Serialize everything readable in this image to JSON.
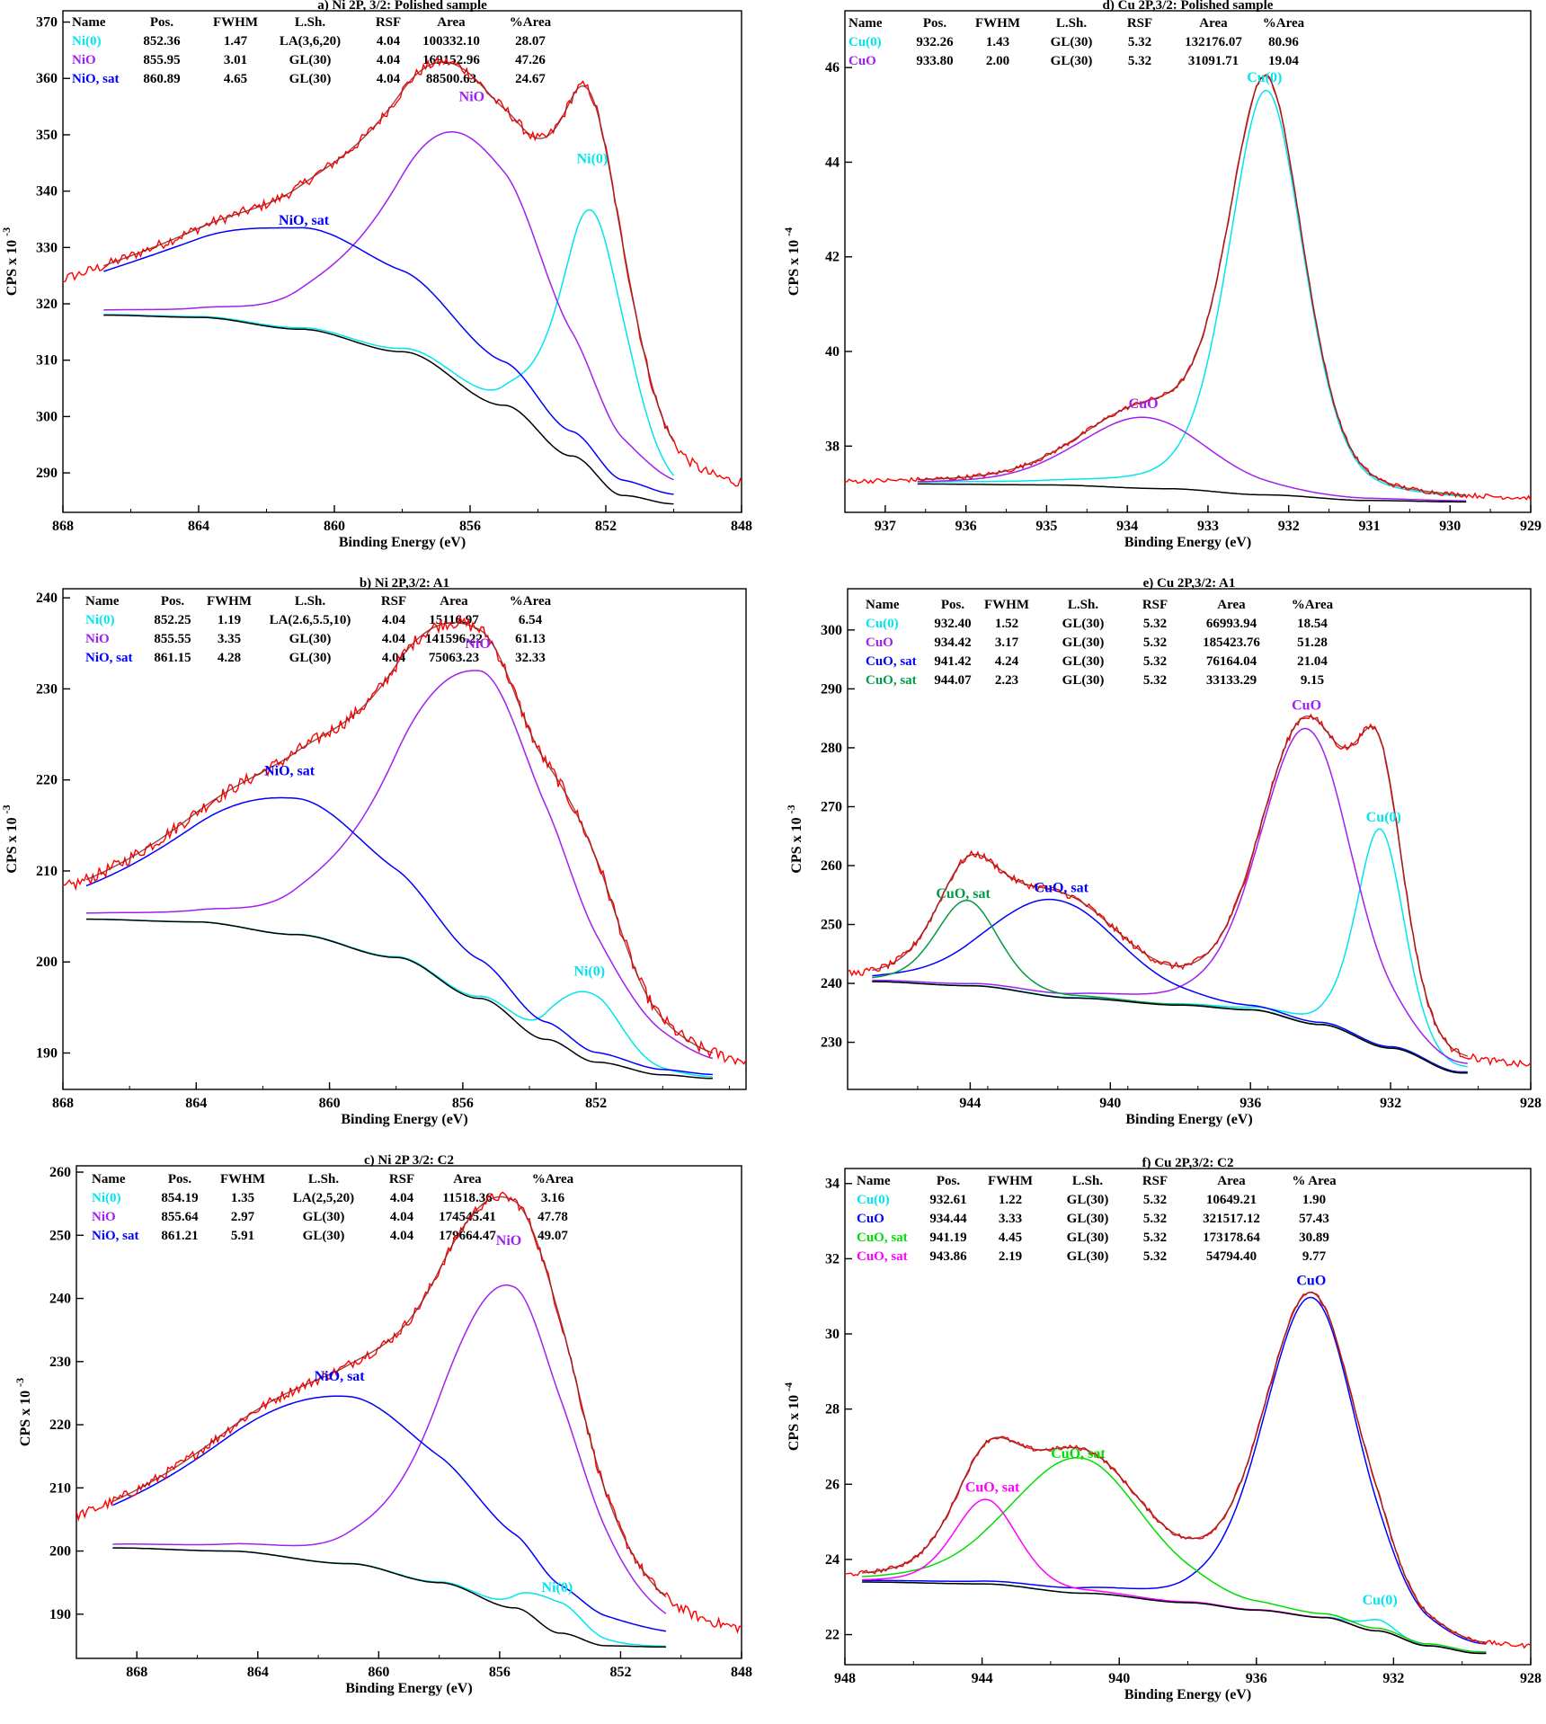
{
  "chart_data": [
    {
      "type": "line",
      "title": "a) Ni 2P, 3/2: Polished sample",
      "xlabel": "Binding Energy (eV)",
      "ylabel": "CPS x 10",
      "ylabel_exp": "-3",
      "xlim": [
        868,
        848
      ],
      "ylim": [
        283,
        372
      ],
      "xticks": [
        868,
        864,
        860,
        856,
        852,
        848
      ],
      "yticks": [
        290,
        300,
        310,
        320,
        330,
        340,
        350,
        360,
        370
      ],
      "table_header": [
        "Name",
        "Pos.",
        "FWHM",
        "L.Sh.",
        "RSF",
        "Area",
        "%Area"
      ],
      "table_rows": [
        [
          "Ni(0)",
          "852.36",
          "1.47",
          "LA(3,6,20)",
          "4.04",
          "100332.10",
          "28.07"
        ],
        [
          "NiO",
          "855.95",
          "3.01",
          "GL(30)",
          "4.04",
          "169152.96",
          "47.26"
        ],
        [
          "NiO, sat",
          "860.89",
          "4.65",
          "GL(30)",
          "4.04",
          "88500.63",
          "24.67"
        ]
      ],
      "row_colors": [
        "#00E5EE",
        "#A020F0",
        "#0000FF"
      ],
      "bg_x": [
        866.8,
        864,
        861,
        858,
        855,
        853,
        851.5,
        850
      ],
      "bg_y": [
        318,
        317.6,
        315.5,
        311.5,
        302,
        293,
        286,
        284.5
      ],
      "x_range": [
        866.8,
        850
      ],
      "components": [
        {
          "name": "Ni(0)",
          "color": "#00E5EE",
          "center": 852.36,
          "height": 46,
          "width": 1.2,
          "label_x": 852.4,
          "label_y": 345
        },
        {
          "name": "NiO",
          "color": "#A020F0",
          "center": 855.95,
          "height": 45,
          "width": 2.9,
          "label_x": 855.95,
          "label_y": 356
        },
        {
          "name": "NiO, sat",
          "color": "#0000FF",
          "center": 860.9,
          "height": 18,
          "width": 5.3,
          "label_x": 860.9,
          "label_y": 334
        }
      ],
      "noise": 0.9,
      "raw_x": [
        869,
        847.5
      ]
    },
    {
      "type": "line",
      "title": "b) Ni 2P,3/2: A1",
      "xlabel": "Binding Energy (eV)",
      "ylabel": "CPS x 10",
      "ylabel_exp": "-3",
      "xlim": [
        868,
        847.5
      ],
      "ylim": [
        186,
        241
      ],
      "xticks": [
        868,
        864,
        860,
        856,
        852
      ],
      "yticks": [
        190,
        200,
        210,
        220,
        230,
        240
      ],
      "table_header": [
        "Name",
        "Pos.",
        "FWHM",
        "L.Sh.",
        "RSF",
        "Area",
        "%Area"
      ],
      "table_rows": [
        [
          "Ni(0)",
          "852.25",
          "1.19",
          "LA(2.6,5.5,10)",
          "4.04",
          "15116.97",
          "6.54"
        ],
        [
          "NiO",
          "855.55",
          "3.35",
          "GL(30)",
          "4.04",
          "141596.22",
          "61.13"
        ],
        [
          "NiO, sat",
          "861.15",
          "4.28",
          "GL(30)",
          "4.04",
          "75063.23",
          "32.33"
        ]
      ],
      "row_colors": [
        "#00E5EE",
        "#A020F0",
        "#0000FF"
      ],
      "bg_x": [
        867.3,
        864,
        861,
        858,
        855.5,
        853.5,
        852,
        850,
        848.5
      ],
      "bg_y": [
        204.7,
        204.4,
        203,
        200.5,
        196,
        191.5,
        189,
        187.6,
        187.2
      ],
      "x_range": [
        867.3,
        848.5
      ],
      "components": [
        {
          "name": "Ni(0)",
          "color": "#00E5EE",
          "center": 852.2,
          "height": 7.5,
          "width": 1.1,
          "label_x": 852.2,
          "label_y": 198.5
        },
        {
          "name": "NiO",
          "color": "#A020F0",
          "center": 855.55,
          "height": 36,
          "width": 3.0,
          "label_x": 855.55,
          "label_y": 234.5
        },
        {
          "name": "NiO, sat",
          "color": "#0000FF",
          "center": 861.2,
          "height": 15,
          "width": 4.1,
          "label_x": 861.2,
          "label_y": 220.5
        }
      ],
      "noise": 0.7,
      "raw_x": [
        868,
        847.5
      ]
    },
    {
      "type": "line",
      "title": "c) Ni 2P 3/2: C2",
      "xlabel": "Binding Energy (eV)",
      "ylabel": "CPS x 10",
      "ylabel_exp": "-3",
      "xlim": [
        870,
        848
      ],
      "ylim": [
        183,
        261
      ],
      "xticks": [
        868,
        864,
        860,
        856,
        852,
        848
      ],
      "yticks": [
        190,
        200,
        210,
        220,
        230,
        240,
        250,
        260
      ],
      "table_header": [
        "Name",
        "Pos.",
        "FWHM",
        "L.Sh.",
        "RSF",
        "Area",
        "%Area"
      ],
      "table_rows": [
        [
          "Ni(0)",
          "854.19",
          "1.35",
          "LA(2,5,20)",
          "4.04",
          "11518.36",
          "3.16"
        ],
        [
          "NiO",
          "855.64",
          "2.97",
          "GL(30)",
          "4.04",
          "174545.41",
          "47.78"
        ],
        [
          "NiO, sat",
          "861.21",
          "5.91",
          "GL(30)",
          "4.04",
          "179664.47",
          "49.07"
        ]
      ],
      "row_colors": [
        "#00E5EE",
        "#A020F0",
        "#0000FF"
      ],
      "bg_x": [
        868.8,
        865,
        861,
        858,
        855.5,
        854,
        852.5,
        850.5
      ],
      "bg_y": [
        200.5,
        200,
        198,
        195,
        191,
        187,
        185,
        184.8
      ],
      "x_range": [
        868.8,
        850.5
      ],
      "components": [
        {
          "name": "Ni(0)",
          "color": "#00E5EE",
          "center": 854.2,
          "height": 5,
          "width": 1.1,
          "label_x": 854.1,
          "label_y": 193.5
        },
        {
          "name": "NiO",
          "color": "#A020F0",
          "center": 855.7,
          "height": 51,
          "width": 2.6,
          "label_x": 855.7,
          "label_y": 248.5
        },
        {
          "name": "NiO, sat",
          "color": "#0000FF",
          "center": 861.2,
          "height": 26.5,
          "width": 5.2,
          "label_x": 861.3,
          "label_y": 227
        }
      ],
      "noise": 0.8,
      "raw_x": [
        870,
        848
      ]
    },
    {
      "type": "line",
      "title": "d) Cu 2P,3/2: Polished sample",
      "xlabel": "Binding Energy (eV)",
      "ylabel": "CPS x 10",
      "ylabel_exp": "-4",
      "xlim": [
        937.5,
        929
      ],
      "ylim": [
        36.6,
        47.2
      ],
      "xticks": [
        937,
        936,
        935,
        934,
        933,
        932,
        931,
        930,
        929
      ],
      "yticks": [
        38,
        40,
        42,
        44,
        46
      ],
      "table_header": [
        "Name",
        "Pos.",
        "FWHM",
        "L.Sh.",
        "RSF",
        "Area",
        "%Area"
      ],
      "table_rows": [
        [
          "Cu(0)",
          "932.26",
          "1.43",
          "GL(30)",
          "5.32",
          "132176.07",
          "80.96"
        ],
        [
          "CuO",
          "933.80",
          "2.00",
          "GL(30)",
          "5.32",
          "31091.71",
          "19.04"
        ]
      ],
      "row_colors": [
        "#00E5EE",
        "#A020F0"
      ],
      "bg_x": [
        936.6,
        935,
        933.5,
        932.3,
        931,
        929.8
      ],
      "bg_y": [
        37.2,
        37.18,
        37.1,
        36.97,
        36.85,
        36.82
      ],
      "x_range": [
        936.6,
        929.8
      ],
      "components": [
        {
          "name": "Cu(0)",
          "color": "#00E5EE",
          "center": 932.28,
          "height": 8.55,
          "width": 0.55,
          "label_x": 932.3,
          "label_y": 45.7
        },
        {
          "name": "CuO",
          "color": "#A020F0",
          "center": 933.8,
          "height": 1.5,
          "width": 0.95,
          "label_x": 933.8,
          "label_y": 38.8
        }
      ],
      "noise": 0.05,
      "raw_x": [
        937.5,
        929
      ]
    },
    {
      "type": "line",
      "title": "e) Cu 2P,3/2: A1",
      "xlabel": "Binding Energy (eV)",
      "ylabel": "CPS x 10",
      "ylabel_exp": "-3",
      "xlim": [
        947.5,
        928
      ],
      "ylim": [
        222,
        307
      ],
      "xticks": [
        944,
        940,
        936,
        932,
        928
      ],
      "yticks": [
        230,
        240,
        250,
        260,
        270,
        280,
        290,
        300
      ],
      "table_header": [
        "Name",
        "Pos.",
        "FWHM",
        "L.Sh.",
        "RSF",
        "Area",
        "%Area"
      ],
      "table_rows": [
        [
          "Cu(0)",
          "932.40",
          "1.52",
          "GL(30)",
          "5.32",
          "66993.94",
          "18.54"
        ],
        [
          "CuO",
          "934.42",
          "3.17",
          "GL(30)",
          "5.32",
          "185423.76",
          "51.28"
        ],
        [
          "CuO, sat",
          "941.42",
          "4.24",
          "GL(30)",
          "5.32",
          "76164.04",
          "21.04"
        ],
        [
          "CuO, sat",
          "944.07",
          "2.23",
          "GL(30)",
          "5.32",
          "33133.29",
          "9.15"
        ]
      ],
      "row_colors": [
        "#00E5EE",
        "#A020F0",
        "#0000FF",
        "#009A44"
      ],
      "bg_x": [
        946.8,
        944,
        941,
        938,
        936,
        934,
        932,
        930
      ],
      "bg_y": [
        240.3,
        239.6,
        237.5,
        236.3,
        235.5,
        233,
        229,
        224.8
      ],
      "x_range": [
        946.8,
        929.8
      ],
      "components": [
        {
          "name": "Cu(0)",
          "color": "#00E5EE",
          "center": 932.3,
          "height": 37,
          "width": 0.8,
          "label_x": 932.2,
          "label_y": 267.5
        },
        {
          "name": "CuO",
          "color": "#A020F0",
          "center": 934.4,
          "height": 50,
          "width": 1.55,
          "label_x": 934.4,
          "label_y": 286.5
        },
        {
          "name": "CuO, sat",
          "color": "#0000FF",
          "center": 941.6,
          "height": 16.5,
          "width": 2.2,
          "label_x": 941.4,
          "label_y": 255.5
        },
        {
          "name": "CuO, sat",
          "color": "#009A44",
          "center": 944.1,
          "height": 14.5,
          "width": 1.05,
          "label_x": 944.2,
          "label_y": 254.5
        }
      ],
      "noise": 0.6,
      "raw_x": [
        947.5,
        928
      ]
    },
    {
      "type": "line",
      "title": "f) Cu 2P,3/2: C2",
      "xlabel": "Binding Energy (eV)",
      "ylabel": "CPS x 10",
      "ylabel_exp": "-4",
      "xlim": [
        948,
        928
      ],
      "ylim": [
        21.2,
        34.4
      ],
      "xticks": [
        948,
        944,
        940,
        936,
        932,
        928
      ],
      "yticks": [
        22,
        24,
        26,
        28,
        30,
        32,
        34
      ],
      "table_header": [
        "Name",
        "Pos.",
        "FWHM",
        "L.Sh.",
        "RSF",
        "Area",
        "% Area"
      ],
      "table_rows": [
        [
          "Cu(0)",
          "932.61",
          "1.22",
          "GL(30)",
          "5.32",
          "10649.21",
          "1.90"
        ],
        [
          "CuO",
          "934.44",
          "3.33",
          "GL(30)",
          "5.32",
          "321517.12",
          "57.43"
        ],
        [
          "CuO, sat",
          "941.19",
          "4.45",
          "GL(30)",
          "5.32",
          "173178.64",
          "30.89"
        ],
        [
          "CuO, sat",
          "943.86",
          "2.19",
          "GL(30)",
          "5.32",
          "54794.40",
          "9.77"
        ]
      ],
      "row_colors": [
        "#00E5EE",
        "#0000FF",
        "#00DD00",
        "#FF00FF"
      ],
      "bg_x": [
        947.5,
        944,
        941,
        938,
        936,
        934,
        932.5,
        931,
        929.5
      ],
      "bg_y": [
        23.4,
        23.35,
        23.1,
        22.85,
        22.65,
        22.45,
        22.1,
        21.7,
        21.5
      ],
      "x_range": [
        947.5,
        929.3
      ],
      "components": [
        {
          "name": "Cu(0)",
          "color": "#00E5EE",
          "center": 932.5,
          "height": 0.3,
          "width": 0.55,
          "label_x": 932.4,
          "label_y": 22.8
        },
        {
          "name": "CuO",
          "color": "#0000FF",
          "center": 934.4,
          "height": 8.5,
          "width": 1.65,
          "label_x": 934.4,
          "label_y": 31.3
        },
        {
          "name": "CuO, sat",
          "color": "#00DD00",
          "center": 941.2,
          "height": 3.6,
          "width": 2.3,
          "label_x": 941.2,
          "label_y": 26.7
        },
        {
          "name": "CuO, sat",
          "color": "#FF00FF",
          "center": 943.9,
          "height": 2.25,
          "width": 1.1,
          "label_x": 943.7,
          "label_y": 25.8
        }
      ],
      "noise": 0.06,
      "raw_x": [
        948,
        928
      ]
    }
  ]
}
